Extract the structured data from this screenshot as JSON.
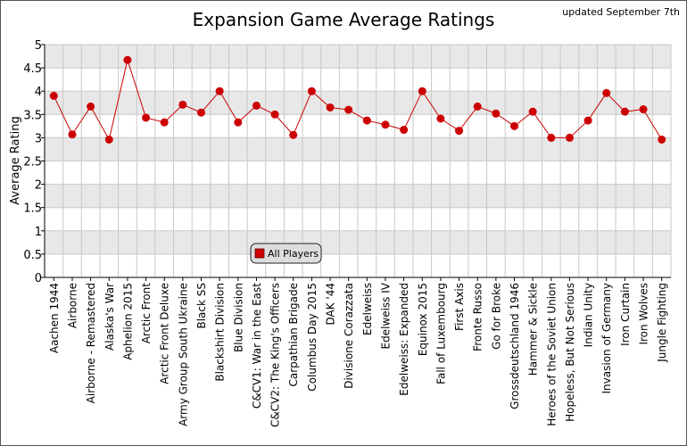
{
  "chart_data": {
    "type": "line",
    "title": "Expansion Game Average Ratings",
    "note": "updated September 7th",
    "xlabel": "",
    "ylabel": "Average Rating",
    "ylim": [
      0,
      5
    ],
    "yticks": [
      "0",
      "0.5",
      "1",
      "1.5",
      "2",
      "2.5",
      "3",
      "3.5",
      "4",
      "4.5",
      "5"
    ],
    "grid": "horizontal bands",
    "legend_position": "bottom-left",
    "colors": {
      "series": "#cc0000",
      "band": "#e8e8e8",
      "grid": "#c8c8c8"
    },
    "categories": [
      "Aachen 1944",
      "Airborne",
      "Airborne - Remastered",
      "Alaska's War",
      "Aphelion 2015",
      "Arctic Front",
      "Arctic Front Deluxe",
      "Army Group South Ukraine",
      "Black SS",
      "Blackshirt Division",
      "Blue Division",
      "C&CV1: War in the East",
      "C&CV2: The King's Officers",
      "Carpathian Brigade",
      "Columbus Day 2015",
      "DAK '44",
      "Divisione Corazzata",
      "Edelweiss",
      "Edelweiss IV",
      "Edelweiss: Expanded",
      "Equinox 2015",
      "Fall of Luxembourg",
      "First Axis",
      "Fronte Russo",
      "Go for Broke",
      "Grossdeutschland 1946",
      "Hammer & Sickle",
      "Heroes of the Soviet Union",
      "Hopeless, But Not Serious",
      "Indian Unity",
      "Invasion of Germany",
      "Iron Curtain",
      "Iron Wolves",
      "Jungle Fighting"
    ],
    "series": [
      {
        "name": "All Players",
        "values": [
          3.9,
          3.07,
          3.67,
          2.96,
          4.67,
          3.43,
          3.33,
          3.71,
          3.54,
          4.0,
          3.33,
          3.69,
          3.5,
          3.06,
          4.0,
          3.65,
          3.6,
          3.37,
          3.28,
          3.17,
          4.0,
          3.41,
          3.15,
          3.67,
          3.52,
          3.25,
          3.56,
          3.0,
          3.0,
          3.37,
          3.96,
          3.56,
          3.61,
          2.96
        ]
      }
    ]
  }
}
